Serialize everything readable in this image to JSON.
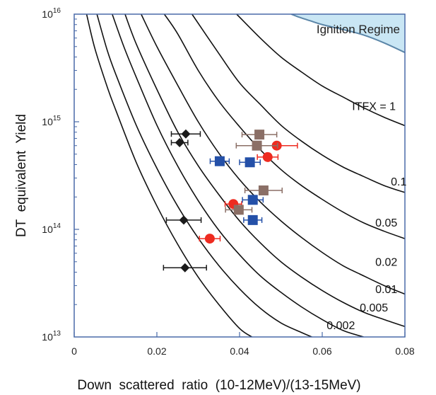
{
  "chart_data": {
    "type": "scatter",
    "xlabel": "Down  scattered  ratio  (10-12MeV)/(13-15MeV)",
    "ylabel": "DT  equivalent  Yield",
    "xlim": [
      0,
      0.08
    ],
    "ylim": [
      10000000000000.0,
      1e+16
    ],
    "yscale": "log",
    "x_ticks": [
      "0",
      "0.02",
      "0.04",
      "0.06",
      "0.08"
    ],
    "x_tick_values": [
      0,
      0.02,
      0.04,
      0.06,
      0.08
    ],
    "y_ticks": [
      {
        "value": 10000000000000.0,
        "base": "10",
        "exp": "13"
      },
      {
        "value": 100000000000000.0,
        "base": "10",
        "exp": "14"
      },
      {
        "value": 1000000000000000.0,
        "base": "10",
        "exp": "15"
      },
      {
        "value": 1e+16,
        "base": "10",
        "exp": "16"
      }
    ],
    "grid": false,
    "region": {
      "label": "Ignition Regime",
      "color": "#c9e6f4",
      "edge_color": "#5b86a8",
      "boundary": [
        [
          0.0525,
          1e+16
        ],
        [
          0.054,
          9500000000000000.0
        ],
        [
          0.057,
          8700000000000000.0
        ],
        [
          0.06,
          8000000000000000.0
        ],
        [
          0.065,
          7200000000000000.0
        ],
        [
          0.07,
          6400000000000000.0
        ],
        [
          0.075,
          5400000000000000.0
        ],
        [
          0.08,
          4400000000000000.0
        ]
      ]
    },
    "curves": [
      {
        "label": "ITFX = 1",
        "points": [
          [
            0.0393,
            1e+16
          ],
          [
            0.045,
            6000000000000000.0
          ],
          [
            0.05,
            4000000000000000.0
          ],
          [
            0.055,
            2900000000000000.0
          ],
          [
            0.06,
            2150000000000000.0
          ],
          [
            0.065,
            1700000000000000.0
          ],
          [
            0.07,
            1350000000000000.0
          ],
          [
            0.075,
            1100000000000000.0
          ],
          [
            0.08,
            920000000000000.0
          ]
        ]
      },
      {
        "label": "0.1",
        "points": [
          [
            0.0285,
            1e+16
          ],
          [
            0.035,
            4300000000000000.0
          ],
          [
            0.04,
            2300000000000000.0
          ],
          [
            0.045,
            1450000000000000.0
          ],
          [
            0.05,
            930000000000000.0
          ],
          [
            0.055,
            660000000000000.0
          ],
          [
            0.06,
            490000000000000.0
          ],
          [
            0.065,
            380000000000000.0
          ],
          [
            0.07,
            310000000000000.0
          ],
          [
            0.075,
            255000000000000.0
          ],
          [
            0.08,
            220000000000000.0
          ]
        ]
      },
      {
        "label": "0.05",
        "points": [
          [
            0.0218,
            1e+16
          ],
          [
            0.025,
            6600000000000000.0
          ],
          [
            0.03,
            3000000000000000.0
          ],
          [
            0.035,
            1550000000000000.0
          ],
          [
            0.04,
            900000000000000.0
          ],
          [
            0.045,
            550000000000000.0
          ],
          [
            0.05,
            360000000000000.0
          ],
          [
            0.055,
            255000000000000.0
          ],
          [
            0.06,
            190000000000000.0
          ],
          [
            0.065,
            145000000000000.0
          ],
          [
            0.07,
            115000000000000.0
          ],
          [
            0.075,
            96000000000000.0
          ],
          [
            0.08,
            82000000000000.0
          ]
        ]
      },
      {
        "label": "0.02",
        "points": [
          [
            0.0162,
            1e+16
          ],
          [
            0.02,
            5000000000000000.0
          ],
          [
            0.025,
            2200000000000000.0
          ],
          [
            0.03,
            1000000000000000.0
          ],
          [
            0.035,
            510000000000000.0
          ],
          [
            0.04,
            290000000000000.0
          ],
          [
            0.045,
            180000000000000.0
          ],
          [
            0.05,
            120000000000000.0
          ],
          [
            0.055,
            84000000000000.0
          ],
          [
            0.06,
            61000000000000.0
          ],
          [
            0.065,
            46000000000000.0
          ],
          [
            0.07,
            37000000000000.0
          ],
          [
            0.075,
            30000000000000.0
          ],
          [
            0.08,
            25000000000000.0
          ]
        ]
      },
      {
        "label": "0.01",
        "points": [
          [
            0.0123,
            1e+16
          ],
          [
            0.015,
            5300000000000000.0
          ],
          [
            0.02,
            2000000000000000.0
          ],
          [
            0.025,
            810000000000000.0
          ],
          [
            0.03,
            390000000000000.0
          ],
          [
            0.035,
            210000000000000.0
          ],
          [
            0.04,
            120000000000000.0
          ],
          [
            0.045,
            75000000000000.0
          ],
          [
            0.05,
            50000000000000.0
          ],
          [
            0.055,
            36000000000000.0
          ],
          [
            0.06,
            27000000000000.0
          ],
          [
            0.065,
            21000000000000.0
          ],
          [
            0.07,
            17000000000000.0
          ],
          [
            0.075,
            14500000000000.0
          ],
          [
            0.08,
            12500000000000.0
          ]
        ]
      },
      {
        "label": "0.005",
        "points": [
          [
            0.0092,
            1e+16
          ],
          [
            0.012,
            5000000000000000.0
          ],
          [
            0.015,
            2600000000000000.0
          ],
          [
            0.02,
            930000000000000.0
          ],
          [
            0.025,
            390000000000000.0
          ],
          [
            0.03,
            185000000000000.0
          ],
          [
            0.035,
            98000000000000.0
          ],
          [
            0.04,
            58000000000000.0
          ],
          [
            0.045,
            37000000000000.0
          ],
          [
            0.05,
            26000000000000.0
          ],
          [
            0.055,
            19000000000000.0
          ],
          [
            0.06,
            14500000000000.0
          ],
          [
            0.065,
            11500000000000.0
          ],
          [
            0.07,
            10000000000000.0
          ]
        ]
      },
      {
        "label": "0.002",
        "points": [
          [
            0.0055,
            1e+16
          ],
          [
            0.008,
            4600000000000000.0
          ],
          [
            0.01,
            2800000000000000.0
          ],
          [
            0.015,
            930000000000000.0
          ],
          [
            0.02,
            370000000000000.0
          ],
          [
            0.025,
            165000000000000.0
          ],
          [
            0.03,
            83000000000000.0
          ],
          [
            0.035,
            46000000000000.0
          ],
          [
            0.04,
            28000000000000.0
          ],
          [
            0.045,
            18500000000000.0
          ],
          [
            0.05,
            13500000000000.0
          ],
          [
            0.055,
            11000000000000.0
          ],
          [
            0.0575,
            10000000000000.0
          ]
        ]
      },
      {
        "label": "",
        "points": [
          [
            0.003,
            1e+16
          ],
          [
            0.005,
            4800000000000000.0
          ],
          [
            0.008,
            2100000000000000.0
          ],
          [
            0.01,
            1300000000000000.0
          ],
          [
            0.015,
            420000000000000.0
          ],
          [
            0.02,
            165000000000000.0
          ],
          [
            0.025,
            73000000000000.0
          ],
          [
            0.03,
            36000000000000.0
          ],
          [
            0.035,
            20000000000000.0
          ],
          [
            0.04,
            12000000000000.0
          ],
          [
            0.043,
            10000000000000.0
          ]
        ]
      }
    ],
    "curve_label_positions": [
      {
        "label": "ITFX = 1",
        "x": 0.0725,
        "y": 1280000000000000.0
      },
      {
        "label": "0.1",
        "x": 0.0785,
        "y": 255000000000000.0
      },
      {
        "label": "0.05",
        "x": 0.0755,
        "y": 106000000000000.0
      },
      {
        "label": "0.02",
        "x": 0.0755,
        "y": 46000000000000.0
      },
      {
        "label": "0.01",
        "x": 0.0755,
        "y": 25500000000000.0
      },
      {
        "label": "0.005",
        "x": 0.0725,
        "y": 17200000000000.0
      },
      {
        "label": "0.002",
        "x": 0.0645,
        "y": 11800000000000.0
      }
    ],
    "series": [
      {
        "marker": "diamond",
        "color": "#1a1a1a",
        "points": [
          {
            "x": 0.027,
            "y": 770000000000000.0,
            "xerr": 0.0035
          },
          {
            "x": 0.0255,
            "y": 640000000000000.0,
            "xerr": 0.002
          },
          {
            "x": 0.0265,
            "y": 122000000000000.0,
            "xerr": 0.0042
          },
          {
            "x": 0.0268,
            "y": 44000000000000.0,
            "xerr": 0.0052
          }
        ]
      },
      {
        "marker": "circle",
        "color": "#ee2b20",
        "points": [
          {
            "x": 0.049,
            "y": 600000000000000.0,
            "xerr": 0.005
          },
          {
            "x": 0.0468,
            "y": 470000000000000.0,
            "xerr": 0.0025
          },
          {
            "x": 0.0385,
            "y": 172000000000000.0,
            "xerr": 0.002
          },
          {
            "x": 0.0328,
            "y": 82000000000000.0,
            "xerr": 0.0025
          }
        ]
      },
      {
        "marker": "square",
        "color": "#2450a8",
        "points": [
          {
            "x": 0.0352,
            "y": 430000000000000.0,
            "xerr": 0.0023
          },
          {
            "x": 0.0425,
            "y": 420000000000000.0,
            "xerr": 0.0025
          },
          {
            "x": 0.0432,
            "y": 188000000000000.0,
            "xerr": 0.0025
          },
          {
            "x": 0.0432,
            "y": 122000000000000.0,
            "xerr": 0.0022
          }
        ]
      },
      {
        "marker": "square",
        "color": "#8b6f66",
        "points": [
          {
            "x": 0.0448,
            "y": 760000000000000.0,
            "xerr": 0.0042
          },
          {
            "x": 0.0442,
            "y": 600000000000000.0,
            "xerr": 0.005
          },
          {
            "x": 0.0458,
            "y": 230000000000000.0,
            "xerr": 0.0045
          },
          {
            "x": 0.0398,
            "y": 152000000000000.0,
            "xerr": 0.0032
          }
        ]
      }
    ]
  }
}
